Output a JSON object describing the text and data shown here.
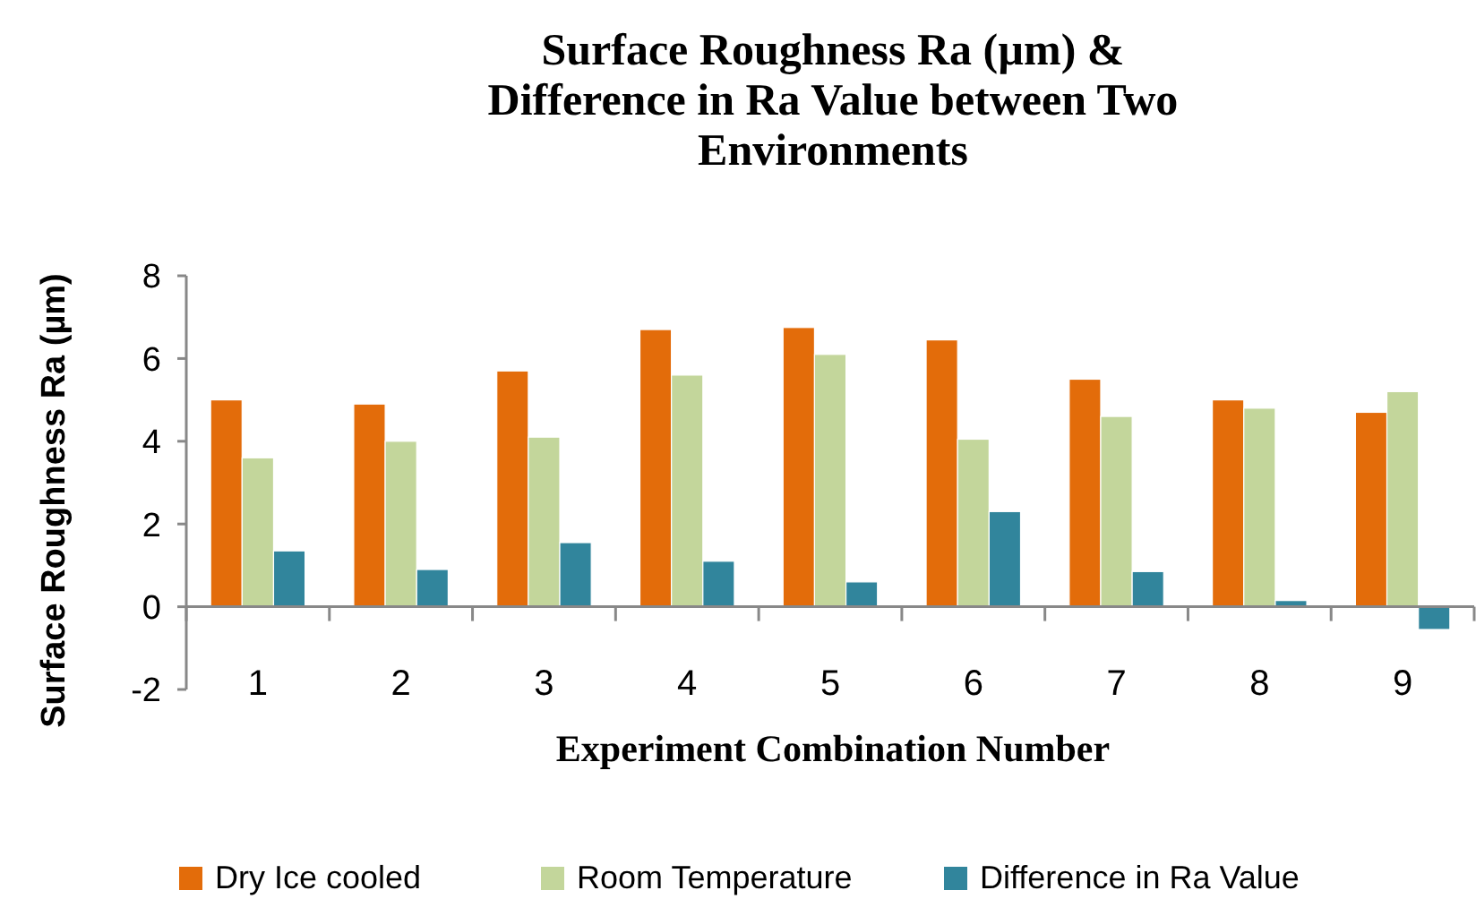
{
  "chart_data": {
    "type": "bar",
    "title": "Surface Roughness Ra (µm)  &\nDifference  in  Ra Value between Two\nEnvironments",
    "xlabel": "Experiment Combination Number",
    "ylabel": "Surface Roughness Ra (µm)",
    "categories": [
      "1",
      "2",
      "3",
      "4",
      "5",
      "6",
      "7",
      "8",
      "9"
    ],
    "series": [
      {
        "name": "Dry Ice cooled",
        "color": "#e36c0a",
        "values": [
          5.0,
          4.9,
          5.7,
          6.7,
          6.75,
          6.45,
          5.5,
          5.0,
          4.7
        ]
      },
      {
        "name": "Room Temperature",
        "color": "#c3d69b",
        "values": [
          3.6,
          4.0,
          4.1,
          5.6,
          6.1,
          4.05,
          4.6,
          4.8,
          5.2
        ]
      },
      {
        "name": "Difference in Ra Value",
        "color": "#31859c",
        "values": [
          1.35,
          0.9,
          1.55,
          1.1,
          0.6,
          2.3,
          0.85,
          0.15,
          -0.55
        ]
      }
    ],
    "ylim": [
      -2,
      8
    ],
    "yticks": [
      -2,
      0,
      2,
      4,
      6,
      8
    ],
    "grid": false,
    "legend": "bottom"
  }
}
